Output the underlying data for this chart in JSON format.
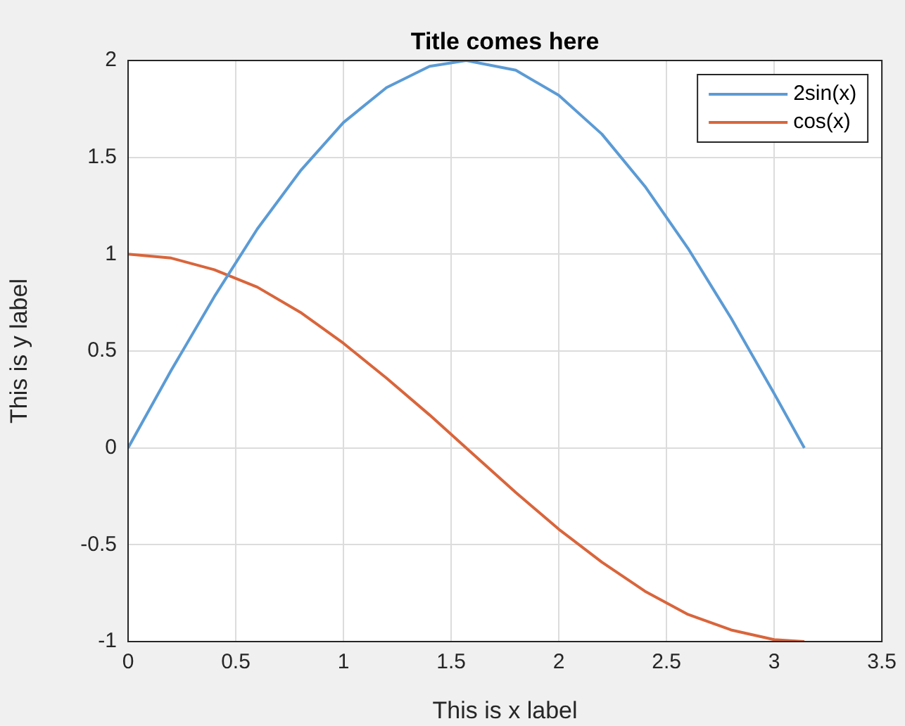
{
  "chart_data": {
    "type": "line",
    "title": "Title comes here",
    "xlabel": "This is x label",
    "ylabel": "This is y label",
    "xlim": [
      0,
      3.5
    ],
    "xticks": [
      0,
      0.5,
      1,
      1.5,
      2,
      2.5,
      3,
      3.5
    ],
    "ylim": [
      -1,
      2
    ],
    "yticks": [
      -1,
      -0.5,
      0,
      0.5,
      1,
      1.5,
      2
    ],
    "grid": true,
    "legend": "top right",
    "line_style": "solid",
    "marker": "none",
    "series": [
      {
        "name": "2sin(x)",
        "color": "#5b9bd5",
        "x": [
          0,
          0.2,
          0.4,
          0.6,
          0.8,
          1.0,
          1.2,
          1.4,
          1.57,
          1.8,
          2.0,
          2.2,
          2.4,
          2.6,
          2.8,
          3.0,
          3.14
        ],
        "values": [
          0,
          0.4,
          0.78,
          1.13,
          1.43,
          1.68,
          1.86,
          1.97,
          2.0,
          1.95,
          1.82,
          1.62,
          1.35,
          1.03,
          0.67,
          0.28,
          0
        ]
      },
      {
        "name": "cos(x)",
        "color": "#d9653b",
        "x": [
          0,
          0.2,
          0.4,
          0.6,
          0.8,
          1.0,
          1.2,
          1.4,
          1.57,
          1.8,
          2.0,
          2.2,
          2.4,
          2.6,
          2.8,
          3.0,
          3.14
        ],
        "values": [
          1,
          0.98,
          0.92,
          0.83,
          0.7,
          0.54,
          0.36,
          0.17,
          0,
          -0.23,
          -0.42,
          -0.59,
          -0.74,
          -0.86,
          -0.94,
          -0.99,
          -1
        ]
      }
    ]
  }
}
